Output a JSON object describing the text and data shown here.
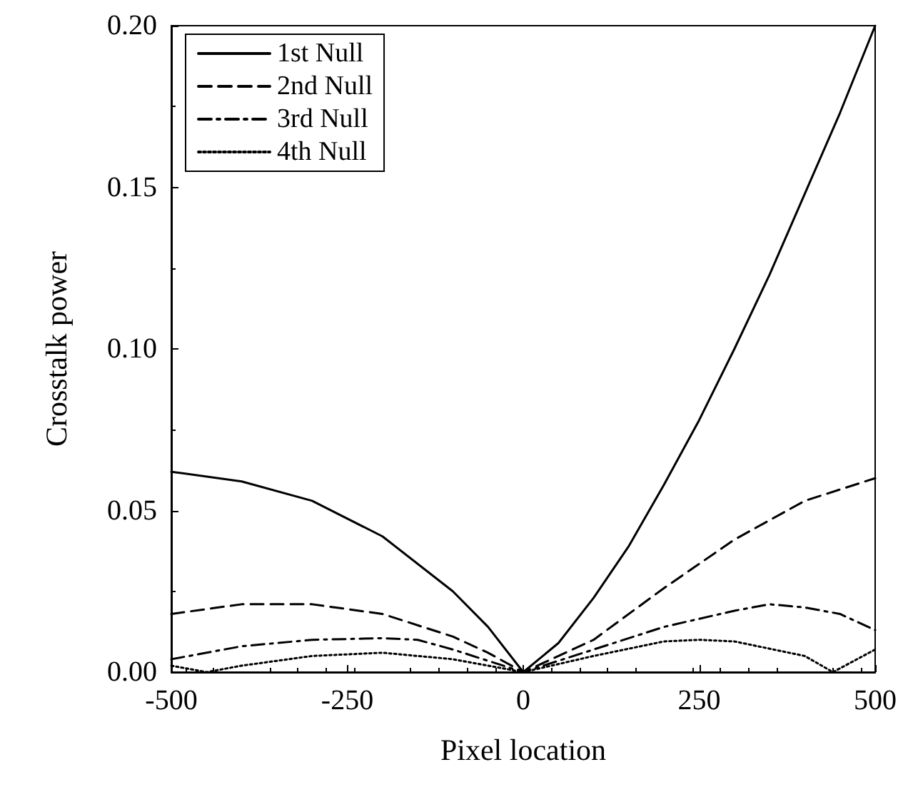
{
  "chart_data": {
    "type": "line",
    "xlabel": "Pixel location",
    "ylabel": "Crosstalk power",
    "xlim": [
      -500,
      500
    ],
    "xticks": [
      -500,
      -250,
      0,
      250,
      500
    ],
    "ylim": [
      0,
      0.2
    ],
    "yticks": [
      {
        "value": 0,
        "label": "0.00"
      },
      {
        "value": 0.05,
        "label": "0.05"
      },
      {
        "value": 0.1,
        "label": "0.10"
      },
      {
        "value": 0.15,
        "label": "0.15"
      },
      {
        "value": 0.2,
        "label": "0.20"
      }
    ],
    "grid": false,
    "legend": "top left",
    "marker": "none",
    "series": [
      {
        "name": "1st Null",
        "color": "#000000",
        "line_style": "solid",
        "x": [
          -500,
          -400,
          -300,
          -200,
          -100,
          -50,
          0,
          50,
          100,
          150,
          200,
          250,
          300,
          350,
          400,
          450,
          500
        ],
        "values": [
          0.062,
          0.059,
          0.053,
          0.042,
          0.025,
          0.014,
          0,
          0.009,
          0.023,
          0.039,
          0.058,
          0.078,
          0.1,
          0.123,
          0.148,
          0.173,
          0.2
        ]
      },
      {
        "name": "2nd Null",
        "color": "#000000",
        "line_style": "dashed",
        "x": [
          -500,
          -400,
          -350,
          -300,
          -200,
          -100,
          -50,
          0,
          100,
          200,
          300,
          400,
          500
        ],
        "values": [
          0.018,
          0.021,
          0.021,
          0.021,
          0.018,
          0.011,
          0.006,
          0,
          0.01,
          0.026,
          0.041,
          0.053,
          0.06
        ]
      },
      {
        "name": "3rd Null",
        "color": "#000000",
        "line_style": "dashdot",
        "x": [
          -500,
          -400,
          -300,
          -200,
          -150,
          -100,
          0,
          100,
          200,
          300,
          350,
          400,
          450,
          500
        ],
        "values": [
          0.004,
          0.008,
          0.01,
          0.0105,
          0.01,
          0.007,
          0,
          0.007,
          0.014,
          0.019,
          0.021,
          0.02,
          0.018,
          0.013
        ]
      },
      {
        "name": "4th Null",
        "color": "#000000",
        "line_style": "dotted",
        "x": [
          -500,
          -450,
          -400,
          -300,
          -200,
          -100,
          0,
          100,
          200,
          250,
          300,
          400,
          440,
          500
        ],
        "values": [
          0.002,
          0,
          0.002,
          0.005,
          0.006,
          0.004,
          0,
          0.005,
          0.0095,
          0.01,
          0.0095,
          0.005,
          0,
          0.007
        ]
      }
    ]
  }
}
